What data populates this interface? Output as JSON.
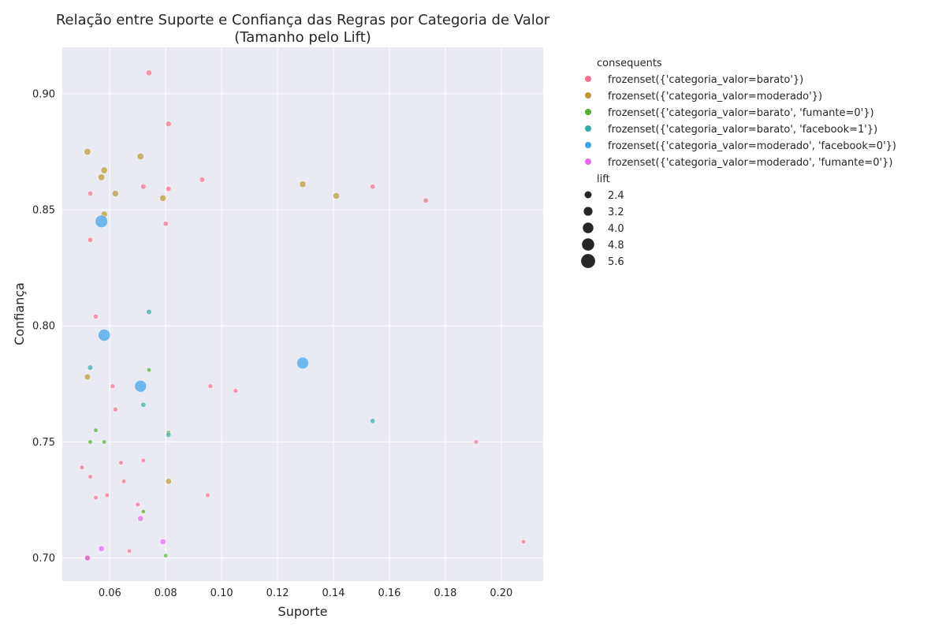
{
  "chart_data": {
    "type": "scatter",
    "title_line1": "Relação entre Suporte e Confiança das Regras por Categoria de Valor",
    "title_line2": "(Tamanho pelo Lift)",
    "xlabel": "Suporte",
    "ylabel": "Confiança",
    "xlim": [
      0.043,
      0.215
    ],
    "ylim": [
      0.69,
      0.92
    ],
    "xticks": [
      0.06,
      0.08,
      0.1,
      0.12,
      0.14,
      0.16,
      0.18,
      0.2
    ],
    "xtick_labels": [
      "0.06",
      "0.08",
      "0.10",
      "0.12",
      "0.14",
      "0.16",
      "0.18",
      "0.20"
    ],
    "yticks": [
      0.7,
      0.75,
      0.8,
      0.85,
      0.9
    ],
    "ytick_labels": [
      "0.70",
      "0.75",
      "0.80",
      "0.85",
      "0.90"
    ],
    "grid": true,
    "background": "#eaeaf2",
    "hue_title": "consequents",
    "size_title": "lift",
    "series": [
      {
        "name": "frozenset({'categoria_valor=barato'})",
        "color": "#f77189",
        "points": [
          [
            0.074,
            0.909,
            2.6
          ],
          [
            0.081,
            0.887,
            2.5
          ],
          [
            0.072,
            0.86,
            2.4
          ],
          [
            0.081,
            0.859,
            2.4
          ],
          [
            0.093,
            0.863,
            2.4
          ],
          [
            0.053,
            0.857,
            2.3
          ],
          [
            0.08,
            0.844,
            2.3
          ],
          [
            0.053,
            0.837,
            2.3
          ],
          [
            0.154,
            0.86,
            2.3
          ],
          [
            0.173,
            0.854,
            2.3
          ],
          [
            0.055,
            0.804,
            2.2
          ],
          [
            0.061,
            0.774,
            2.1
          ],
          [
            0.096,
            0.774,
            2.1
          ],
          [
            0.105,
            0.772,
            2.1
          ],
          [
            0.062,
            0.764,
            2.1
          ],
          [
            0.191,
            0.75,
            2.0
          ],
          [
            0.064,
            0.741,
            2.0
          ],
          [
            0.072,
            0.742,
            2.0
          ],
          [
            0.05,
            0.739,
            2.0
          ],
          [
            0.053,
            0.735,
            2.0
          ],
          [
            0.065,
            0.733,
            2.0
          ],
          [
            0.059,
            0.727,
            2.0
          ],
          [
            0.055,
            0.726,
            2.0
          ],
          [
            0.07,
            0.723,
            2.0
          ],
          [
            0.095,
            0.727,
            2.0
          ],
          [
            0.067,
            0.703,
            1.9
          ],
          [
            0.208,
            0.707,
            1.9
          ],
          [
            0.052,
            0.7,
            1.9
          ]
        ]
      },
      {
        "name": "frozenset({'categoria_valor=moderado'})",
        "color": "#bb9832",
        "points": [
          [
            0.052,
            0.875,
            3.0
          ],
          [
            0.071,
            0.873,
            3.0
          ],
          [
            0.058,
            0.867,
            3.0
          ],
          [
            0.057,
            0.864,
            3.0
          ],
          [
            0.062,
            0.857,
            2.9
          ],
          [
            0.079,
            0.855,
            2.9
          ],
          [
            0.058,
            0.848,
            2.9
          ],
          [
            0.129,
            0.861,
            2.9
          ],
          [
            0.141,
            0.856,
            2.9
          ],
          [
            0.052,
            0.778,
            2.7
          ],
          [
            0.081,
            0.733,
            2.6
          ],
          [
            0.052,
            0.7,
            2.5
          ]
        ]
      },
      {
        "name": "frozenset({'categoria_valor=barato', 'fumante=0'})",
        "color": "#50b131",
        "points": [
          [
            0.074,
            0.781,
            2.0
          ],
          [
            0.055,
            0.755,
            2.0
          ],
          [
            0.053,
            0.75,
            2.0
          ],
          [
            0.058,
            0.75,
            2.0
          ],
          [
            0.081,
            0.754,
            2.0
          ],
          [
            0.072,
            0.72,
            1.9
          ],
          [
            0.08,
            0.701,
            1.9
          ]
        ]
      },
      {
        "name": "frozenset({'categoria_valor=barato', 'facebook=1'})",
        "color": "#36ada4",
        "points": [
          [
            0.074,
            0.806,
            2.4
          ],
          [
            0.053,
            0.782,
            2.4
          ],
          [
            0.072,
            0.766,
            2.3
          ],
          [
            0.081,
            0.753,
            2.3
          ],
          [
            0.154,
            0.759,
            2.3
          ]
        ]
      },
      {
        "name": "frozenset({'categoria_valor=moderado', 'facebook=0'})",
        "color": "#3ba3ec",
        "points": [
          [
            0.057,
            0.845,
            5.6
          ],
          [
            0.058,
            0.796,
            5.4
          ],
          [
            0.071,
            0.774,
            5.3
          ],
          [
            0.129,
            0.784,
            5.3
          ]
        ]
      },
      {
        "name": "frozenset({'categoria_valor=moderado', 'fumante=0'})",
        "color": "#e866f4",
        "points": [
          [
            0.071,
            0.717,
            2.6
          ],
          [
            0.079,
            0.707,
            2.6
          ],
          [
            0.057,
            0.704,
            2.6
          ],
          [
            0.052,
            0.7,
            2.6
          ]
        ]
      }
    ],
    "size_legend": [
      {
        "label": "2.4",
        "value": 2.4
      },
      {
        "label": "3.2",
        "value": 3.2
      },
      {
        "label": "4.0",
        "value": 4.0
      },
      {
        "label": "4.8",
        "value": 4.8
      },
      {
        "label": "5.6",
        "value": 5.6
      }
    ]
  }
}
